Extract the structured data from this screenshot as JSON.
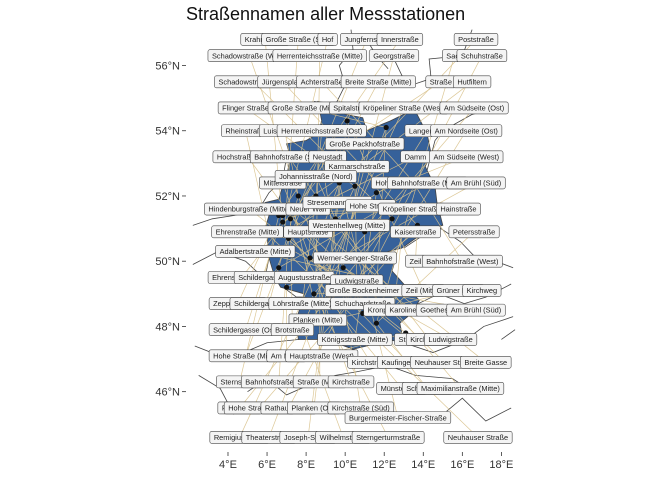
{
  "title": "Straßennamen aller Messstationen",
  "colors": {
    "germany_fill": "#36619a",
    "border": "#444444",
    "leader": "#d9c28c",
    "station": "#111111",
    "label_fill": "#f4f4f4"
  },
  "axes": {
    "lon_ticks": [
      "4°E",
      "6°E",
      "8°E",
      "10°E",
      "12°E",
      "14°E",
      "16°E",
      "18°E"
    ],
    "lat_ticks": [
      "46°N",
      "48°N",
      "50°N",
      "52°N",
      "54°N",
      "56°N"
    ]
  },
  "labels": [
    {
      "text": "Krahnstraße",
      "lon": 5.9,
      "lat": 56.8
    },
    {
      "text": "Große Straße (Süd)",
      "lon": 7.6,
      "lat": 56.8
    },
    {
      "text": "Hof",
      "lon": 9.1,
      "lat": 56.8
    },
    {
      "text": "Jungfernstieg",
      "lon": 11.1,
      "lat": 56.8
    },
    {
      "text": "Innerstraße",
      "lon": 12.8,
      "lat": 56.8
    },
    {
      "text": "Poststraße",
      "lon": 16.7,
      "lat": 56.8
    },
    {
      "text": "Schadowstraße (West)",
      "lon": 5.1,
      "lat": 56.3
    },
    {
      "text": "Herrenteichsstraße (Mitte)",
      "lon": 8.7,
      "lat": 56.3
    },
    {
      "text": "Georgstraße",
      "lon": 12.5,
      "lat": 56.3
    },
    {
      "text": "Sack",
      "lon": 15.6,
      "lat": 56.3
    },
    {
      "text": "Schuhstraße",
      "lon": 17.0,
      "lat": 56.3
    },
    {
      "text": "Schadowstraße (Ost)",
      "lon": 5.3,
      "lat": 55.5
    },
    {
      "text": "Jürgensplatz",
      "lon": 6.8,
      "lat": 55.5
    },
    {
      "text": "Achterstraße",
      "lon": 8.8,
      "lat": 55.5
    },
    {
      "text": "Breite Straße (Mitte)",
      "lon": 11.7,
      "lat": 55.5
    },
    {
      "text": "Straße",
      "lon": 14.9,
      "lat": 55.5
    },
    {
      "text": "Hutfiltern",
      "lon": 16.5,
      "lat": 55.5
    },
    {
      "text": "Flinger Straße",
      "lon": 4.9,
      "lat": 54.7
    },
    {
      "text": "Große Straße (Mitte)",
      "lon": 8.0,
      "lat": 54.7
    },
    {
      "text": "Spitalstraße",
      "lon": 10.4,
      "lat": 54.7
    },
    {
      "text": "Kröpeliner Straße (West)",
      "lon": 13.0,
      "lat": 54.7
    },
    {
      "text": "Am Südseite (Ost)",
      "lon": 16.6,
      "lat": 54.7
    },
    {
      "text": "Rheinstraße",
      "lon": 4.9,
      "lat": 54.0
    },
    {
      "text": "Luisenstraße",
      "lon": 6.9,
      "lat": 54.0
    },
    {
      "text": "Herrenteichsstraße (Ost)",
      "lon": 8.8,
      "lat": 54.0
    },
    {
      "text": "Langer Hof",
      "lon": 14.2,
      "lat": 54.0
    },
    {
      "text": "Am Nordseite (Ost)",
      "lon": 16.2,
      "lat": 54.0
    },
    {
      "text": "Große Packhofstraße",
      "lon": 11.0,
      "lat": 53.6
    },
    {
      "text": "Hochstraße (Mitte)",
      "lon": 5.0,
      "lat": 53.2
    },
    {
      "text": "Bahnhofstraße (Süd)",
      "lon": 7.1,
      "lat": 53.2
    },
    {
      "text": "Neustadt",
      "lon": 9.1,
      "lat": 53.2
    },
    {
      "text": "Karmarschstraße",
      "lon": 10.6,
      "lat": 52.9
    },
    {
      "text": "Damm",
      "lon": 13.6,
      "lat": 53.2
    },
    {
      "text": "Am Südseite (West)",
      "lon": 16.2,
      "lat": 53.2
    },
    {
      "text": "Mittelstraße",
      "lon": 6.8,
      "lat": 52.4
    },
    {
      "text": "Johannisstraße (Nord)",
      "lon": 8.5,
      "lat": 52.6
    },
    {
      "text": "Hoher Weg",
      "lon": 12.5,
      "lat": 52.4
    },
    {
      "text": "Bahnhofstraße (Mitte)",
      "lon": 14.2,
      "lat": 52.4
    },
    {
      "text": "Am Brühl (Süd)",
      "lon": 16.7,
      "lat": 52.4
    },
    {
      "text": "Hindenburgstraße (Mitte)",
      "lon": 5.1,
      "lat": 51.6
    },
    {
      "text": "Neuer Wall",
      "lon": 8.1,
      "lat": 51.6
    },
    {
      "text": "Stresemannstraße",
      "lon": 9.6,
      "lat": 51.8
    },
    {
      "text": "Hohe Straße",
      "lon": 11.3,
      "lat": 51.7
    },
    {
      "text": "Kröpeliner Straße",
      "lon": 13.4,
      "lat": 51.6
    },
    {
      "text": "Hainstraße",
      "lon": 15.8,
      "lat": 51.6
    },
    {
      "text": "Ehrenstraße (Mitte)",
      "lon": 5.0,
      "lat": 50.9
    },
    {
      "text": "Hauptstraße",
      "lon": 8.1,
      "lat": 50.9
    },
    {
      "text": "Westenhellweg (Mitte)",
      "lon": 10.2,
      "lat": 51.1
    },
    {
      "text": "Kaiserstraße",
      "lon": 13.6,
      "lat": 50.9
    },
    {
      "text": "Petersstraße",
      "lon": 16.6,
      "lat": 50.9
    },
    {
      "text": "Adalbertstraße (Mitte)",
      "lon": 5.4,
      "lat": 50.3
    },
    {
      "text": "Werner-Senger-Straße",
      "lon": 10.5,
      "lat": 50.1
    },
    {
      "text": "Zeil",
      "lon": 13.6,
      "lat": 50.0
    },
    {
      "text": "Bahnhofstraße (West)",
      "lon": 16.0,
      "lat": 50.0
    },
    {
      "text": "Ehrenstraße (Ost)",
      "lon": 4.7,
      "lat": 49.5
    },
    {
      "text": "Schildergasse (Mitte)",
      "lon": 6.3,
      "lat": 49.5
    },
    {
      "text": "Augustusstraße",
      "lon": 7.9,
      "lat": 49.5
    },
    {
      "text": "Ludwigstraße",
      "lon": 10.6,
      "lat": 49.4
    },
    {
      "text": "Große Bockenheimer Straße",
      "lon": 11.6,
      "lat": 49.1
    },
    {
      "text": "Zeil (Mitte)",
      "lon": 14.0,
      "lat": 49.1
    },
    {
      "text": "Grüner Markt",
      "lon": 15.8,
      "lat": 49.1
    },
    {
      "text": "Kirchweg",
      "lon": 17.0,
      "lat": 49.1
    },
    {
      "text": "Zeppelinstraße",
      "lon": 4.5,
      "lat": 48.7
    },
    {
      "text": "Schildergasse (West)",
      "lon": 6.1,
      "lat": 48.7
    },
    {
      "text": "Löhrstraße (Mitte)",
      "lon": 7.8,
      "lat": 48.7
    },
    {
      "text": "Schuchardstraße",
      "lon": 10.9,
      "lat": 48.7
    },
    {
      "text": "Kronprinzstraße",
      "lon": 12.5,
      "lat": 48.5
    },
    {
      "text": "Karolinenstraße",
      "lon": 13.6,
      "lat": 48.5
    },
    {
      "text": "Goethestraße",
      "lon": 15.0,
      "lat": 48.5
    },
    {
      "text": "Am Brühl (Süd)",
      "lon": 16.7,
      "lat": 48.5
    },
    {
      "text": "Planken (Mitte)",
      "lon": 8.6,
      "lat": 48.2
    },
    {
      "text": "Schildergasse (Ost)",
      "lon": 4.9,
      "lat": 47.9
    },
    {
      "text": "Brotstraße",
      "lon": 7.3,
      "lat": 47.9
    },
    {
      "text": "Königsstraße (Mitte)",
      "lon": 10.5,
      "lat": 47.6
    },
    {
      "text": "Straße",
      "lon": 13.3,
      "lat": 47.6
    },
    {
      "text": "Kirchstraße",
      "lon": 14.3,
      "lat": 47.6
    },
    {
      "text": "Ludwigstraße",
      "lon": 15.4,
      "lat": 47.6
    },
    {
      "text": "Hohe Straße (Mitte)",
      "lon": 4.9,
      "lat": 47.1
    },
    {
      "text": "Am Markt",
      "lon": 7.0,
      "lat": 47.1
    },
    {
      "text": "Hauptstraße (West)",
      "lon": 8.8,
      "lat": 47.1
    },
    {
      "text": "Kirchstraße",
      "lon": 11.3,
      "lat": 46.9
    },
    {
      "text": "Kaufingerstraße",
      "lon": 13.2,
      "lat": 46.9
    },
    {
      "text": "Neuhauser Straße",
      "lon": 15.1,
      "lat": 46.9
    },
    {
      "text": "Breite Gasse",
      "lon": 17.2,
      "lat": 46.9
    },
    {
      "text": "Sternstraße",
      "lon": 4.6,
      "lat": 46.3
    },
    {
      "text": "Bahnhofstraße (Ost)",
      "lon": 6.6,
      "lat": 46.3
    },
    {
      "text": "Straße (Mitte)",
      "lon": 8.7,
      "lat": 46.3
    },
    {
      "text": "Kirchstraße",
      "lon": 10.3,
      "lat": 46.3
    },
    {
      "text": "Münsterplatz",
      "lon": 12.9,
      "lat": 46.1
    },
    {
      "text": "Schuhstraße",
      "lon": 14.2,
      "lat": 46.1
    },
    {
      "text": "Maximilianstraße (Mitte)",
      "lon": 15.9,
      "lat": 46.1
    },
    {
      "text": "Poststraße",
      "lon": 4.6,
      "lat": 45.5
    },
    {
      "text": "Hohe Straße (Süd)",
      "lon": 5.6,
      "lat": 45.5
    },
    {
      "text": "Rathausgasse",
      "lon": 7.1,
      "lat": 45.5
    },
    {
      "text": "Planken (Ost)",
      "lon": 8.4,
      "lat": 45.5
    },
    {
      "text": "Kirchstraße (Süd)",
      "lon": 10.8,
      "lat": 45.5
    },
    {
      "text": "Burgermeister-Fischer-Straße",
      "lon": 12.7,
      "lat": 45.2
    },
    {
      "text": "Remigiusstraße",
      "lon": 4.6,
      "lat": 44.6
    },
    {
      "text": "Theaterstraße",
      "lon": 6.1,
      "lat": 44.6
    },
    {
      "text": "Joseph-Straße",
      "lon": 8.1,
      "lat": 44.6
    },
    {
      "text": "Wilhelmstraße",
      "lon": 9.9,
      "lat": 44.6
    },
    {
      "text": "Sterngerturmstraße",
      "lon": 12.2,
      "lat": 44.6
    },
    {
      "text": "Neuhauser Straße",
      "lon": 16.8,
      "lat": 44.6
    }
  ],
  "stations": [
    {
      "lon": 6.8,
      "lat": 51.2
    },
    {
      "lon": 6.9,
      "lat": 50.9
    },
    {
      "lon": 7.0,
      "lat": 51.5
    },
    {
      "lon": 7.5,
      "lat": 51.5
    },
    {
      "lon": 6.6,
      "lat": 51.4
    },
    {
      "lon": 7.1,
      "lat": 50.7
    },
    {
      "lon": 8.7,
      "lat": 50.1
    },
    {
      "lon": 8.5,
      "lat": 49.5
    },
    {
      "lon": 9.2,
      "lat": 48.8
    },
    {
      "lon": 11.6,
      "lat": 48.1
    },
    {
      "lon": 11.1,
      "lat": 49.5
    },
    {
      "lon": 12.4,
      "lat": 51.3
    },
    {
      "lon": 13.7,
      "lat": 51.1
    },
    {
      "lon": 13.4,
      "lat": 52.5
    },
    {
      "lon": 10.0,
      "lat": 53.6
    },
    {
      "lon": 8.8,
      "lat": 53.1
    },
    {
      "lon": 9.7,
      "lat": 52.4
    },
    {
      "lon": 10.5,
      "lat": 52.3
    },
    {
      "lon": 12.1,
      "lat": 54.1
    },
    {
      "lon": 10.1,
      "lat": 54.3
    },
    {
      "lon": 7.8,
      "lat": 48.0
    },
    {
      "lon": 8.4,
      "lat": 49.0
    },
    {
      "lon": 6.1,
      "lat": 50.8
    },
    {
      "lon": 7.6,
      "lat": 52.0
    },
    {
      "lon": 8.5,
      "lat": 52.0
    },
    {
      "lon": 11.0,
      "lat": 50.9
    },
    {
      "lon": 12.9,
      "lat": 50.8
    },
    {
      "lon": 9.9,
      "lat": 49.8
    },
    {
      "lon": 10.9,
      "lat": 48.4
    },
    {
      "lon": 12.1,
      "lat": 49.0
    },
    {
      "lon": 7.4,
      "lat": 51.5
    },
    {
      "lon": 6.8,
      "lat": 51.4
    },
    {
      "lon": 7.2,
      "lat": 51.3
    },
    {
      "lon": 11.6,
      "lat": 52.1
    },
    {
      "lon": 8.2,
      "lat": 50.1
    },
    {
      "lon": 9.5,
      "lat": 51.3
    },
    {
      "lon": 7.1,
      "lat": 50.4
    },
    {
      "lon": 6.6,
      "lat": 49.8
    },
    {
      "lon": 7.0,
      "lat": 49.2
    },
    {
      "lon": 13.1,
      "lat": 47.8
    }
  ]
}
